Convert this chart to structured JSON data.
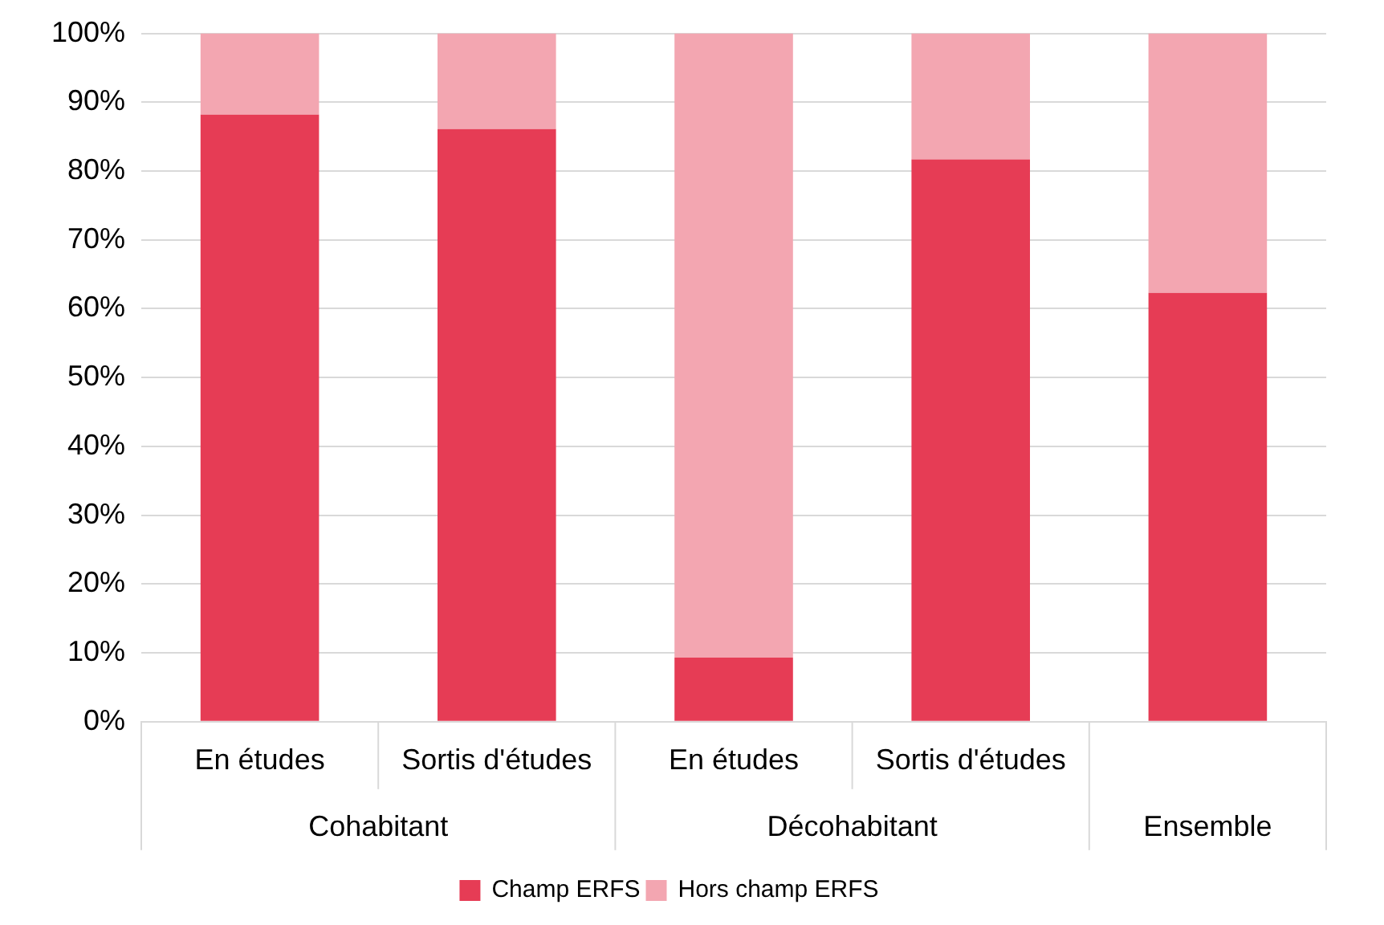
{
  "chart_data": {
    "type": "bar",
    "stacked": true,
    "categories": [
      "En études",
      "Sortis d'études",
      "En études",
      "Sortis d'études",
      null
    ],
    "series": [
      {
        "name": "Champ ERFS",
        "color": "#e63c55",
        "values": [
          88.2,
          86.1,
          9.3,
          81.7,
          62.3
        ]
      },
      {
        "name": "Hors champ ERFS",
        "color": "#f3a6b1",
        "values": [
          11.8,
          13.9,
          90.7,
          18.3,
          37.7
        ]
      }
    ],
    "ylim": [
      0,
      100
    ],
    "yticks": [
      {
        "value": 0,
        "label": "0%"
      },
      {
        "value": 10,
        "label": "10%"
      },
      {
        "value": 20,
        "label": "20%"
      },
      {
        "value": 30,
        "label": "30%"
      },
      {
        "value": 40,
        "label": "40%"
      },
      {
        "value": 50,
        "label": "50%"
      },
      {
        "value": 60,
        "label": "60%"
      },
      {
        "value": 70,
        "label": "70%"
      },
      {
        "value": 80,
        "label": "80%"
      },
      {
        "value": 90,
        "label": "90%"
      },
      {
        "value": 100,
        "label": "100%"
      }
    ],
    "grid": "y",
    "legend": "bottom",
    "annotations": [
      "Cohabitant",
      "Décohabitant",
      "Ensemble"
    ]
  }
}
